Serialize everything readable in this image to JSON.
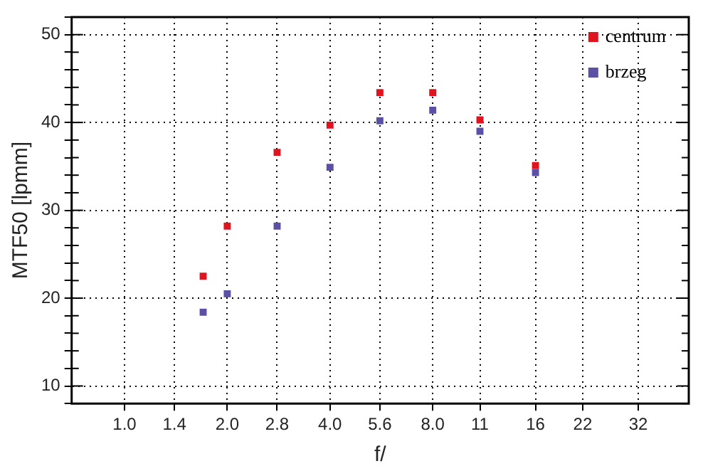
{
  "chart_data": {
    "type": "scatter",
    "xlabel": "f/",
    "ylabel": "MTF50 [lpmm]",
    "x": [
      1.7,
      2.0,
      2.8,
      4.0,
      5.6,
      8.0,
      11,
      16
    ],
    "series": [
      {
        "name": "centrum",
        "color": "#e0141e",
        "values": [
          22.5,
          28.2,
          36.6,
          39.7,
          43.4,
          43.4,
          40.3,
          35.1
        ]
      },
      {
        "name": "brzeg",
        "color": "#5a50a5",
        "values": [
          18.4,
          20.5,
          28.2,
          34.9,
          40.2,
          41.4,
          39.0,
          34.3
        ]
      }
    ],
    "log": "x",
    "xlim": [
      0.71,
      45
    ],
    "xticks": [
      {
        "value": 1.0,
        "label": "1.0"
      },
      1.4,
      {
        "value": 2.0,
        "label": "2.0"
      },
      2.8,
      {
        "value": 4.0,
        "label": "4.0"
      },
      5.6,
      {
        "value": 8.0,
        "label": "8.0"
      },
      11,
      16,
      22,
      32
    ],
    "ylim": [
      8,
      52
    ],
    "yticks": [
      {
        "value": 8,
        "label": null
      },
      10,
      {
        "value": 12,
        "label": null
      },
      {
        "value": 14,
        "label": null
      },
      {
        "value": 16,
        "label": null
      },
      {
        "value": 18,
        "label": null
      },
      20,
      {
        "value": 22,
        "label": null
      },
      {
        "value": 24,
        "label": null
      },
      {
        "value": 26,
        "label": null
      },
      {
        "value": 28,
        "label": null
      },
      30,
      {
        "value": 32,
        "label": null
      },
      {
        "value": 34,
        "label": null
      },
      {
        "value": 36,
        "label": null
      },
      {
        "value": 38,
        "label": null
      },
      40,
      {
        "value": 42,
        "label": null
      },
      {
        "value": 44,
        "label": null
      },
      {
        "value": 46,
        "label": null
      },
      {
        "value": 48,
        "label": null
      },
      50,
      {
        "value": 52,
        "label": null
      }
    ],
    "grid": true,
    "legend": "top right",
    "marker": "square"
  }
}
